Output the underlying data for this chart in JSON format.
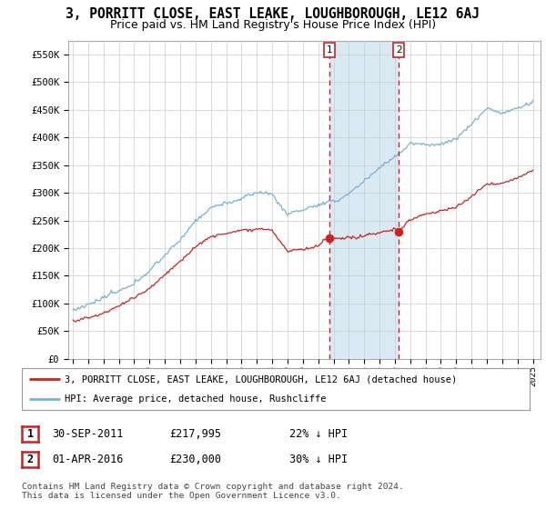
{
  "title": "3, PORRITT CLOSE, EAST LEAKE, LOUGHBOROUGH, LE12 6AJ",
  "subtitle": "Price paid vs. HM Land Registry's House Price Index (HPI)",
  "ylim": [
    0,
    575000
  ],
  "yticks": [
    0,
    50000,
    100000,
    150000,
    200000,
    250000,
    300000,
    350000,
    400000,
    450000,
    500000,
    550000
  ],
  "ytick_labels": [
    "£0",
    "£50K",
    "£100K",
    "£150K",
    "£200K",
    "£250K",
    "£300K",
    "£350K",
    "£400K",
    "£450K",
    "£500K",
    "£550K"
  ],
  "hpi_color": "#7aafd4",
  "hpi_shade_color": "#daeaf5",
  "price_color": "#cc2222",
  "marker1_x": 2011.75,
  "marker2_x": 2016.25,
  "marker1_price": 217995,
  "marker2_price": 230000,
  "legend_entry1": "3, PORRITT CLOSE, EAST LEAKE, LOUGHBOROUGH, LE12 6AJ (detached house)",
  "legend_entry2": "HPI: Average price, detached house, Rushcliffe",
  "table_row1": [
    "1",
    "30-SEP-2011",
    "£217,995",
    "22% ↓ HPI"
  ],
  "table_row2": [
    "2",
    "01-APR-2016",
    "£230,000",
    "30% ↓ HPI"
  ],
  "footer": "Contains HM Land Registry data © Crown copyright and database right 2024.\nThis data is licensed under the Open Government Licence v3.0.",
  "background_color": "#ffffff",
  "grid_color": "#cccccc"
}
